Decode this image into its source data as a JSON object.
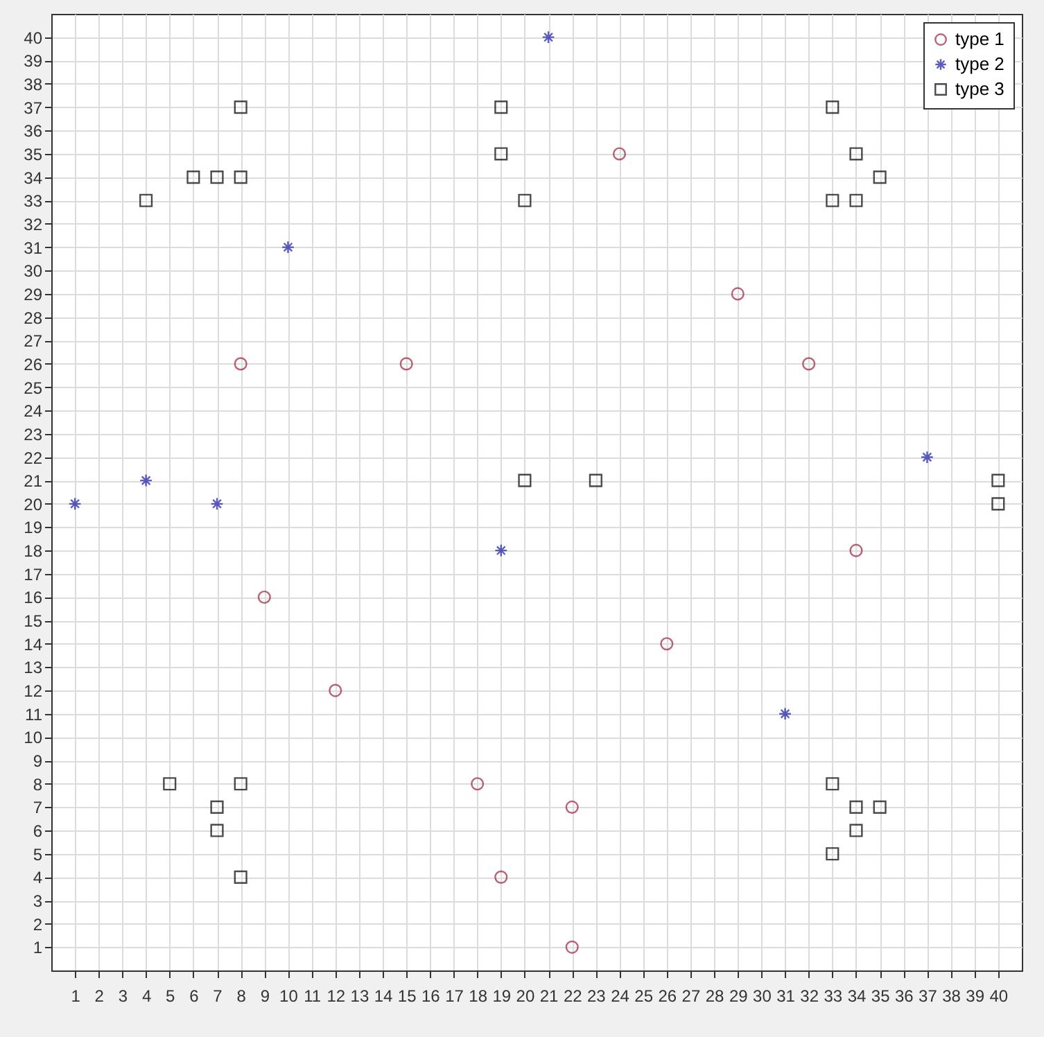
{
  "chart_data": {
    "type": "scatter",
    "xlim": [
      0,
      41
    ],
    "ylim": [
      0,
      41
    ],
    "xticks": [
      1,
      2,
      3,
      4,
      5,
      6,
      7,
      8,
      9,
      10,
      11,
      12,
      13,
      14,
      15,
      16,
      17,
      18,
      19,
      20,
      21,
      22,
      23,
      24,
      25,
      26,
      27,
      28,
      29,
      30,
      31,
      32,
      33,
      34,
      35,
      36,
      37,
      38,
      39,
      40
    ],
    "yticks": [
      1,
      2,
      3,
      4,
      5,
      6,
      7,
      8,
      9,
      10,
      11,
      12,
      13,
      14,
      15,
      16,
      17,
      18,
      19,
      20,
      21,
      22,
      23,
      24,
      25,
      26,
      27,
      28,
      29,
      30,
      31,
      32,
      33,
      34,
      35,
      36,
      37,
      38,
      39,
      40
    ],
    "grid": true,
    "legend": "top right",
    "series": [
      {
        "name": "type 1",
        "color": "#a0203a",
        "marker": "circle",
        "x": [
          8,
          15,
          24,
          29,
          32,
          34,
          26,
          9,
          12,
          18,
          22,
          19,
          22
        ],
        "values": [
          26,
          26,
          35,
          29,
          26,
          18,
          14,
          16,
          12,
          8,
          7,
          4,
          1
        ]
      },
      {
        "name": "type 2",
        "color": "#1a1aa6",
        "marker": "cross",
        "x": [
          21,
          10,
          1,
          4,
          7,
          19,
          37,
          31
        ],
        "values": [
          40,
          31,
          20,
          21,
          20,
          18,
          22,
          11
        ]
      },
      {
        "name": "type 3",
        "color": "#000000",
        "marker": "square",
        "x": [
          8,
          4,
          6,
          7,
          8,
          19,
          19,
          20,
          33,
          34,
          35,
          33,
          34,
          20,
          23,
          40,
          40,
          5,
          8,
          7,
          7,
          8,
          33,
          34,
          35,
          34,
          33
        ],
        "values": [
          37,
          33,
          34,
          34,
          34,
          37,
          35,
          33,
          37,
          35,
          34,
          33,
          33,
          21,
          21,
          21,
          20,
          8,
          8,
          7,
          6,
          4,
          8,
          7,
          7,
          6,
          5
        ]
      }
    ]
  }
}
